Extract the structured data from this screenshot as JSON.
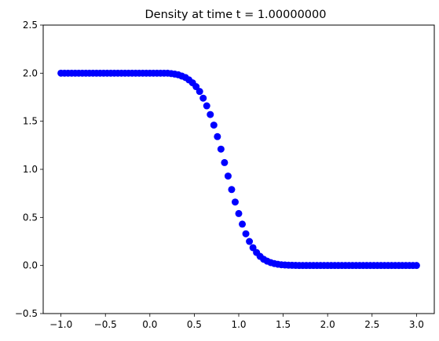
{
  "chart_data": {
    "type": "scatter",
    "title": "Density at time t =      1.00000000",
    "xlabel": "",
    "ylabel": "",
    "xlim": [
      -1.2,
      3.2
    ],
    "ylim": [
      -0.5,
      2.5
    ],
    "x_ticks": [
      "−1.0",
      "−0.5",
      "0.0",
      "0.5",
      "1.0",
      "1.5",
      "2.0",
      "2.5",
      "3.0"
    ],
    "x_tick_values": [
      -1.0,
      -0.5,
      0.0,
      0.5,
      1.0,
      1.5,
      2.0,
      2.5,
      3.0
    ],
    "y_ticks": [
      "−0.5",
      "0.0",
      "0.5",
      "1.0",
      "1.5",
      "2.0",
      "2.5"
    ],
    "y_tick_values": [
      -0.5,
      0.0,
      0.5,
      1.0,
      1.5,
      2.0,
      2.5
    ],
    "grid": false,
    "marker_color": "#0000ff",
    "series": [
      {
        "name": "",
        "x": [
          -1.0,
          -0.96,
          -0.92,
          -0.88,
          -0.84,
          -0.8,
          -0.76,
          -0.72,
          -0.68,
          -0.64,
          -0.6,
          -0.56,
          -0.52,
          -0.48,
          -0.44,
          -0.4,
          -0.36,
          -0.32,
          -0.28,
          -0.24,
          -0.2,
          -0.16,
          -0.12,
          -0.08,
          -0.04,
          0.0,
          0.04,
          0.08,
          0.12,
          0.16,
          0.2,
          0.24,
          0.28,
          0.32,
          0.36,
          0.4,
          0.44,
          0.48,
          0.52,
          0.56,
          0.6,
          0.64,
          0.68,
          0.72,
          0.76,
          0.8,
          0.84,
          0.88,
          0.92,
          0.96,
          1.0,
          1.04,
          1.08,
          1.12,
          1.16,
          1.2,
          1.24,
          1.28,
          1.32,
          1.36,
          1.4,
          1.44,
          1.48,
          1.52,
          1.56,
          1.6,
          1.64,
          1.68,
          1.72,
          1.76,
          1.8,
          1.84,
          1.88,
          1.92,
          1.96,
          2.0,
          2.04,
          2.08,
          2.12,
          2.16,
          2.2,
          2.24,
          2.28,
          2.32,
          2.36,
          2.4,
          2.44,
          2.48,
          2.52,
          2.56,
          2.6,
          2.64,
          2.68,
          2.72,
          2.76,
          2.8,
          2.84,
          2.88,
          2.92,
          2.96,
          3.0
        ],
        "y": [
          2.0,
          2.0,
          2.0,
          2.0,
          2.0,
          2.0,
          2.0,
          2.0,
          2.0,
          2.0,
          2.0,
          2.0,
          2.0,
          2.0,
          2.0,
          2.0,
          2.0,
          2.0,
          2.0,
          2.0,
          2.0,
          2.0,
          2.0,
          2.0,
          2.0,
          2.0,
          2.0,
          2.0,
          2.0,
          2.0,
          2.0,
          1.996,
          1.99,
          1.983,
          1.97,
          1.955,
          1.93,
          1.9,
          1.86,
          1.81,
          1.74,
          1.66,
          1.57,
          1.46,
          1.34,
          1.21,
          1.07,
          0.93,
          0.79,
          0.66,
          0.54,
          0.43,
          0.33,
          0.25,
          0.185,
          0.135,
          0.095,
          0.065,
          0.045,
          0.03,
          0.02,
          0.013,
          0.008,
          0.005,
          0.003,
          0.002,
          0.001,
          0.0,
          0.0,
          0.0,
          0.0,
          0.0,
          0.0,
          0.0,
          0.0,
          0.0,
          0.0,
          0.0,
          0.0,
          0.0,
          0.0,
          0.0,
          0.0,
          0.0,
          0.0,
          0.0,
          0.0,
          0.0,
          0.0,
          0.0,
          0.0,
          0.0,
          0.0,
          0.0,
          0.0,
          0.0,
          0.0,
          0.0,
          0.0,
          0.0,
          0.0
        ]
      }
    ]
  }
}
